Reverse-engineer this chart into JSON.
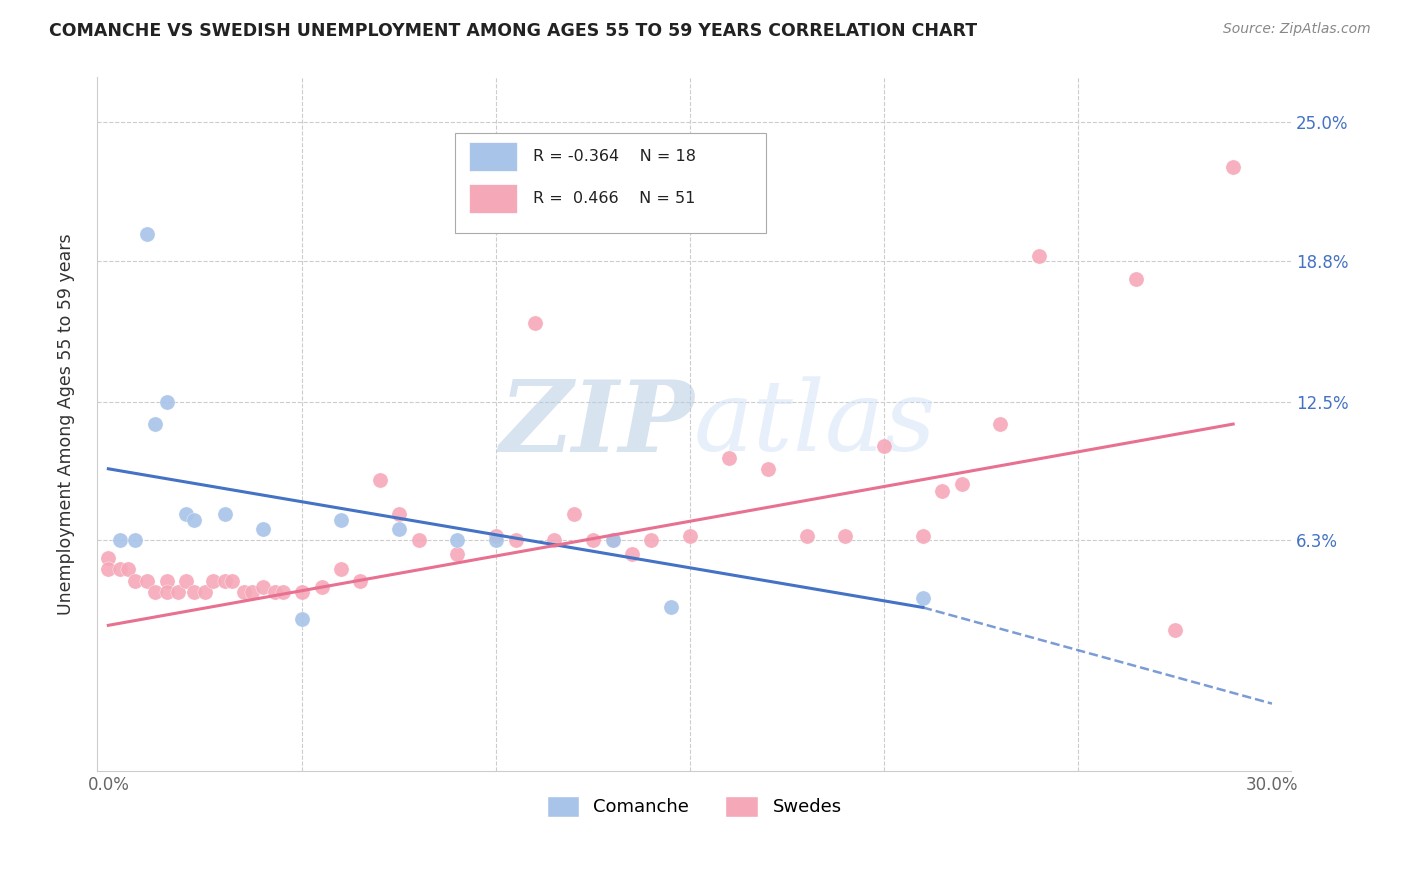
{
  "title": "COMANCHE VS SWEDISH UNEMPLOYMENT AMONG AGES 55 TO 59 YEARS CORRELATION CHART",
  "source": "Source: ZipAtlas.com",
  "ylabel": "Unemployment Among Ages 55 to 59 years",
  "xlim": [
    -0.003,
    0.305
  ],
  "ylim": [
    -0.04,
    0.27
  ],
  "xtick_pos": [
    0.0,
    0.05,
    0.1,
    0.15,
    0.2,
    0.25,
    0.3
  ],
  "xticklabels": [
    "0.0%",
    "",
    "",
    "",
    "",
    "",
    "30.0%"
  ],
  "ytick_pos": [
    0.0,
    0.063,
    0.125,
    0.188,
    0.25
  ],
  "ytick_labels": [
    "",
    "6.3%",
    "12.5%",
    "18.8%",
    "25.0%"
  ],
  "color_comanche": "#a8c4e8",
  "color_swedes": "#f5a8b8",
  "color_line_comanche": "#4472c4",
  "color_line_swedes": "#e87090",
  "watermark_color": "#dde8f5",
  "comanche_x": [
    0.003,
    0.007,
    0.01,
    0.012,
    0.015,
    0.02,
    0.022,
    0.03,
    0.04,
    0.05,
    0.06,
    0.075,
    0.09,
    0.1,
    0.13,
    0.145,
    0.21
  ],
  "comanche_y": [
    0.063,
    0.063,
    0.2,
    0.115,
    0.125,
    0.075,
    0.072,
    0.075,
    0.068,
    0.028,
    0.072,
    0.068,
    0.063,
    0.063,
    0.063,
    0.033,
    0.037
  ],
  "swedes_x": [
    0.0,
    0.0,
    0.003,
    0.005,
    0.007,
    0.01,
    0.012,
    0.015,
    0.015,
    0.018,
    0.02,
    0.022,
    0.025,
    0.027,
    0.03,
    0.032,
    0.035,
    0.037,
    0.04,
    0.043,
    0.045,
    0.05,
    0.055,
    0.06,
    0.065,
    0.07,
    0.075,
    0.08,
    0.09,
    0.1,
    0.105,
    0.11,
    0.115,
    0.12,
    0.125,
    0.13,
    0.135,
    0.14,
    0.15,
    0.16,
    0.17,
    0.18,
    0.19,
    0.2,
    0.21,
    0.215,
    0.22,
    0.23,
    0.24,
    0.265,
    0.275,
    0.29
  ],
  "swedes_y": [
    0.055,
    0.05,
    0.05,
    0.05,
    0.045,
    0.045,
    0.04,
    0.045,
    0.04,
    0.04,
    0.045,
    0.04,
    0.04,
    0.045,
    0.045,
    0.045,
    0.04,
    0.04,
    0.042,
    0.04,
    0.04,
    0.04,
    0.042,
    0.05,
    0.045,
    0.09,
    0.075,
    0.063,
    0.057,
    0.065,
    0.063,
    0.16,
    0.063,
    0.075,
    0.063,
    0.063,
    0.057,
    0.063,
    0.065,
    0.1,
    0.095,
    0.065,
    0.065,
    0.105,
    0.065,
    0.085,
    0.088,
    0.115,
    0.19,
    0.18,
    0.023,
    0.23
  ],
  "trend_comanche_x0": 0.0,
  "trend_comanche_y0": 0.095,
  "trend_comanche_x1": 0.21,
  "trend_comanche_y1": 0.033,
  "trend_comanche_dashed_x1": 0.3,
  "trend_comanche_dashed_y1": -0.01,
  "trend_swedes_x0": 0.0,
  "trend_swedes_y0": 0.025,
  "trend_swedes_x1": 0.29,
  "trend_swedes_y1": 0.115
}
